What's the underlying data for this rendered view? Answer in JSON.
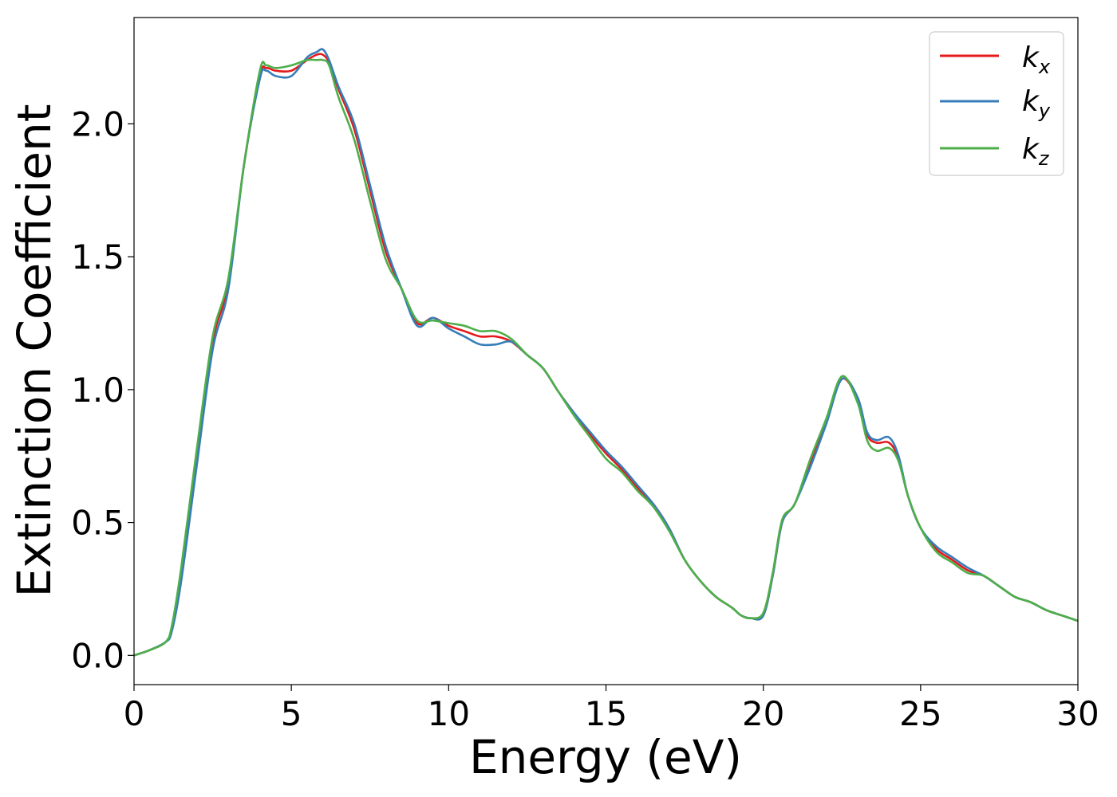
{
  "chart_data": {
    "type": "line",
    "xlabel": "Energy (eV)",
    "ylabel": "Extinction Coefficient",
    "xlim": [
      0,
      30
    ],
    "ylim": [
      -0.11,
      2.4
    ],
    "xticks": [
      0,
      5,
      10,
      15,
      20,
      25,
      30
    ],
    "xtick_labels": [
      "0",
      "5",
      "10",
      "15",
      "20",
      "25",
      "30"
    ],
    "yticks": [
      0.0,
      0.5,
      1.0,
      1.5,
      2.0
    ],
    "ytick_labels": [
      "0.0",
      "0.5",
      "1.0",
      "1.5",
      "2.0"
    ],
    "grid": false,
    "legend_position": "top-right",
    "x": [
      0,
      0.5,
      1.0,
      1.2,
      1.5,
      2.0,
      2.5,
      3.0,
      3.5,
      4.0,
      4.2,
      4.5,
      5.0,
      5.5,
      5.8,
      6.0,
      6.2,
      6.5,
      7.0,
      7.5,
      8.0,
      8.5,
      9.0,
      9.5,
      10.0,
      10.5,
      11.0,
      11.5,
      12.0,
      12.5,
      13.0,
      13.5,
      14.0,
      14.5,
      15.0,
      15.5,
      16.0,
      16.5,
      17.0,
      17.5,
      18.0,
      18.5,
      19.0,
      19.3,
      19.6,
      20.0,
      20.3,
      20.6,
      21.0,
      21.5,
      22.0,
      22.5,
      23.0,
      23.3,
      23.6,
      24.0,
      24.3,
      24.6,
      25.0,
      25.5,
      26.0,
      26.5,
      27.0,
      27.5,
      28.0,
      28.5,
      29.0,
      29.5,
      30.0
    ],
    "series": [
      {
        "name": "k_x",
        "color": "#e41a1c",
        "values": [
          0.0,
          0.02,
          0.05,
          0.1,
          0.3,
          0.75,
          1.18,
          1.4,
          1.85,
          2.18,
          2.21,
          2.2,
          2.2,
          2.24,
          2.26,
          2.26,
          2.23,
          2.13,
          1.98,
          1.75,
          1.52,
          1.38,
          1.25,
          1.27,
          1.24,
          1.22,
          1.2,
          1.2,
          1.18,
          1.13,
          1.08,
          0.99,
          0.91,
          0.83,
          0.76,
          0.7,
          0.63,
          0.57,
          0.48,
          0.36,
          0.28,
          0.22,
          0.18,
          0.15,
          0.14,
          0.15,
          0.3,
          0.5,
          0.57,
          0.72,
          0.88,
          1.04,
          0.96,
          0.83,
          0.8,
          0.8,
          0.74,
          0.6,
          0.48,
          0.4,
          0.36,
          0.32,
          0.3,
          0.26,
          0.22,
          0.2,
          0.17,
          0.15,
          0.13
        ]
      },
      {
        "name": "k_y",
        "color": "#377eb8",
        "values": [
          0.0,
          0.02,
          0.05,
          0.09,
          0.28,
          0.72,
          1.15,
          1.38,
          1.85,
          2.17,
          2.2,
          2.18,
          2.18,
          2.25,
          2.27,
          2.28,
          2.24,
          2.14,
          2.0,
          1.77,
          1.54,
          1.38,
          1.24,
          1.27,
          1.23,
          1.2,
          1.17,
          1.17,
          1.18,
          1.13,
          1.08,
          0.99,
          0.91,
          0.84,
          0.77,
          0.71,
          0.64,
          0.57,
          0.48,
          0.36,
          0.28,
          0.22,
          0.18,
          0.15,
          0.14,
          0.15,
          0.3,
          0.5,
          0.57,
          0.71,
          0.87,
          1.04,
          0.97,
          0.84,
          0.81,
          0.82,
          0.75,
          0.6,
          0.48,
          0.41,
          0.37,
          0.33,
          0.3,
          0.26,
          0.22,
          0.2,
          0.17,
          0.15,
          0.13
        ]
      },
      {
        "name": "k_z",
        "color": "#4daf4a",
        "values": [
          0.0,
          0.02,
          0.05,
          0.11,
          0.33,
          0.78,
          1.2,
          1.42,
          1.85,
          2.2,
          2.22,
          2.21,
          2.22,
          2.24,
          2.24,
          2.24,
          2.22,
          2.1,
          1.94,
          1.71,
          1.49,
          1.38,
          1.26,
          1.26,
          1.25,
          1.24,
          1.22,
          1.22,
          1.19,
          1.13,
          1.08,
          0.99,
          0.9,
          0.82,
          0.74,
          0.69,
          0.62,
          0.56,
          0.47,
          0.36,
          0.28,
          0.22,
          0.18,
          0.15,
          0.14,
          0.16,
          0.31,
          0.51,
          0.57,
          0.74,
          0.89,
          1.05,
          0.95,
          0.81,
          0.77,
          0.78,
          0.73,
          0.6,
          0.48,
          0.39,
          0.35,
          0.31,
          0.3,
          0.26,
          0.22,
          0.2,
          0.17,
          0.15,
          0.13
        ]
      }
    ]
  }
}
